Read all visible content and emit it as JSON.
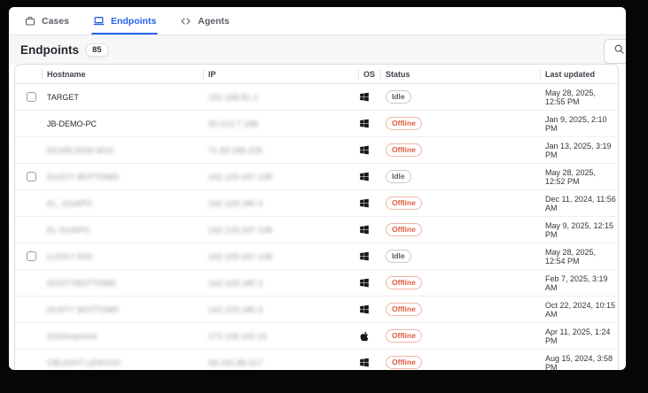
{
  "tabs": {
    "items": [
      {
        "id": "cases",
        "label": "Cases",
        "icon": "briefcase-icon",
        "active": false
      },
      {
        "id": "endpoints",
        "label": "Endpoints",
        "icon": "laptop-icon",
        "active": true
      },
      {
        "id": "agents",
        "label": "Agents",
        "icon": "code-icon",
        "active": false
      }
    ]
  },
  "header": {
    "title": "Endpoints",
    "count": "85",
    "search_icon": "search-icon"
  },
  "table": {
    "headers": [
      "Hostname",
      "IP",
      "OS",
      "Status",
      "Last updated"
    ],
    "rows": [
      {
        "hostname": "TARGET",
        "hostname_blurred": false,
        "ip": "192.168.81.2",
        "ip_blurred": true,
        "os": "windows",
        "status": "Idle",
        "last_updated": "May 28, 2025, 12:55 PM",
        "checkbox": true
      },
      {
        "hostname": "JB-DEMO-PC",
        "hostname_blurred": false,
        "ip": "50.213.7.188",
        "ip_blurred": true,
        "os": "windows",
        "status": "Offline",
        "last_updated": "Jan 9, 2025, 2:10 PM",
        "checkbox": false
      },
      {
        "hostname": "DCARLSON-W10",
        "hostname_blurred": true,
        "ip": "71.83.186.225",
        "ip_blurred": true,
        "os": "windows",
        "status": "Offline",
        "last_updated": "Jan 13, 2025, 3:19 PM",
        "checkbox": false
      },
      {
        "hostname": "DUSTY BOTTOMS",
        "hostname_blurred": true,
        "ip": "142.129.247.148",
        "ip_blurred": true,
        "os": "windows",
        "status": "Idle",
        "last_updated": "May 28, 2025, 12:52 PM",
        "checkbox": true
      },
      {
        "hostname": "EL_GUAPO",
        "hostname_blurred": true,
        "ip": "142.129.180.3",
        "ip_blurred": true,
        "os": "windows",
        "status": "Offline",
        "last_updated": "Dec 11, 2024, 11:56 AM",
        "checkbox": false
      },
      {
        "hostname": "EL GUAPO",
        "hostname_blurred": true,
        "ip": "142.129.247.148",
        "ip_blurred": true,
        "os": "windows",
        "status": "Offline",
        "last_updated": "May 9, 2025, 12:15 PM",
        "checkbox": false
      },
      {
        "hostname": "LUCKY DAY",
        "hostname_blurred": true,
        "ip": "142.129.247.148",
        "ip_blurred": true,
        "os": "windows",
        "status": "Idle",
        "last_updated": "May 28, 2025, 12:54 PM",
        "checkbox": true
      },
      {
        "hostname": "DUSTYBOTTOMS",
        "hostname_blurred": true,
        "ip": "142.129.180.3",
        "ip_blurred": true,
        "os": "windows",
        "status": "Offline",
        "last_updated": "Feb 7, 2025, 3:19 AM",
        "checkbox": false
      },
      {
        "hostname": "DUSTY BOTTOMS",
        "hostname_blurred": true,
        "ip": "142.129.180.3",
        "ip_blurred": true,
        "os": "windows",
        "status": "Offline",
        "last_updated": "Oct 22, 2024, 10:15 AM",
        "checkbox": false
      },
      {
        "hostname": "2020macmini",
        "hostname_blurred": true,
        "ip": "172.118.102.13",
        "ip_blurred": true,
        "os": "apple",
        "status": "Offline",
        "last_updated": "Apr 11, 2025, 1:24 PM",
        "checkbox": false
      },
      {
        "hostname": "CBLIGHT-LENOVO",
        "hostname_blurred": true,
        "ip": "68.192.86.217",
        "ip_blurred": true,
        "os": "windows",
        "status": "Offline",
        "last_updated": "Aug 15, 2024, 3:58 PM",
        "checkbox": false
      }
    ]
  },
  "colors": {
    "accent": "#2563eb",
    "offline_text": "#df5c41",
    "offline_border": "#f0b4a5",
    "idle_text": "#595e66",
    "idle_border": "#c7c9ce",
    "band_background": "#f7f7f8",
    "frame_background": "#060606"
  }
}
